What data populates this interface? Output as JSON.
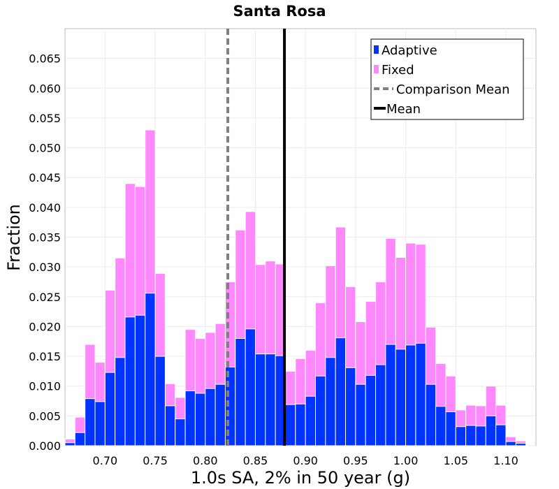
{
  "chart_data": {
    "type": "bar",
    "title": "Santa Rosa",
    "xlabel": "1.0s SA, 2% in 50 year (g)",
    "ylabel": "Fraction",
    "xlim": [
      0.66,
      1.13
    ],
    "ylim": [
      0,
      0.07
    ],
    "bin_width": 0.01,
    "grid": true,
    "legend_position": "top-right",
    "x_ticks": [
      "0.70",
      "0.75",
      "0.80",
      "0.85",
      "0.90",
      "0.95",
      "1.00",
      "1.05",
      "1.10"
    ],
    "y_ticks": [
      "0.000",
      "0.005",
      "0.010",
      "0.015",
      "0.020",
      "0.025",
      "0.030",
      "0.035",
      "0.040",
      "0.045",
      "0.050",
      "0.055",
      "0.060",
      "0.065"
    ],
    "bin_starts": [
      0.66,
      0.67,
      0.68,
      0.69,
      0.7,
      0.71,
      0.72,
      0.73,
      0.74,
      0.75,
      0.76,
      0.77,
      0.78,
      0.79,
      0.8,
      0.81,
      0.82,
      0.83,
      0.84,
      0.85,
      0.86,
      0.87,
      0.88,
      0.89,
      0.9,
      0.91,
      0.92,
      0.93,
      0.94,
      0.95,
      0.96,
      0.97,
      0.98,
      0.99,
      1.0,
      1.01,
      1.02,
      1.03,
      1.04,
      1.05,
      1.06,
      1.07,
      1.08,
      1.09,
      1.1,
      1.11
    ],
    "series": [
      {
        "name": "Fixed",
        "color": "#ff88ff",
        "values": [
          0.0011,
          0.0048,
          0.017,
          0.014,
          0.0261,
          0.0315,
          0.044,
          0.0435,
          0.053,
          0.0289,
          0.0104,
          0.0081,
          0.0195,
          0.018,
          0.019,
          0.0205,
          0.0275,
          0.0362,
          0.0393,
          0.0304,
          0.031,
          0.0305,
          0.0125,
          0.0146,
          0.016,
          0.024,
          0.0302,
          0.0367,
          0.0267,
          0.0208,
          0.0242,
          0.0275,
          0.0348,
          0.0316,
          0.034,
          0.0338,
          0.0199,
          0.0138,
          0.0117,
          0.006,
          0.0068,
          0.0067,
          0.01,
          0.0068,
          0.0015,
          0.0008
        ]
      },
      {
        "name": "Adaptive",
        "color": "#0033ff",
        "values": [
          0.0005,
          0.0022,
          0.0079,
          0.0074,
          0.0123,
          0.0148,
          0.0216,
          0.0219,
          0.0256,
          0.015,
          0.0067,
          0.0045,
          0.0092,
          0.0088,
          0.0096,
          0.0103,
          0.0132,
          0.018,
          0.0196,
          0.0154,
          0.0154,
          0.0151,
          0.0069,
          0.007,
          0.0083,
          0.0117,
          0.0148,
          0.0181,
          0.0131,
          0.0103,
          0.0118,
          0.0136,
          0.017,
          0.0162,
          0.0169,
          0.0172,
          0.0103,
          0.0066,
          0.0057,
          0.0032,
          0.0034,
          0.0033,
          0.005,
          0.0035,
          0.0007,
          0.0004
        ]
      }
    ],
    "reference_lines": [
      {
        "name": "Comparison Mean",
        "x": 0.8225,
        "style": "dashed",
        "color": "#808080"
      },
      {
        "name": "Mean",
        "x": 0.879,
        "style": "solid",
        "color": "#000000"
      }
    ],
    "legend": [
      "Adaptive",
      "Fixed",
      "Comparison Mean",
      "Mean"
    ]
  }
}
